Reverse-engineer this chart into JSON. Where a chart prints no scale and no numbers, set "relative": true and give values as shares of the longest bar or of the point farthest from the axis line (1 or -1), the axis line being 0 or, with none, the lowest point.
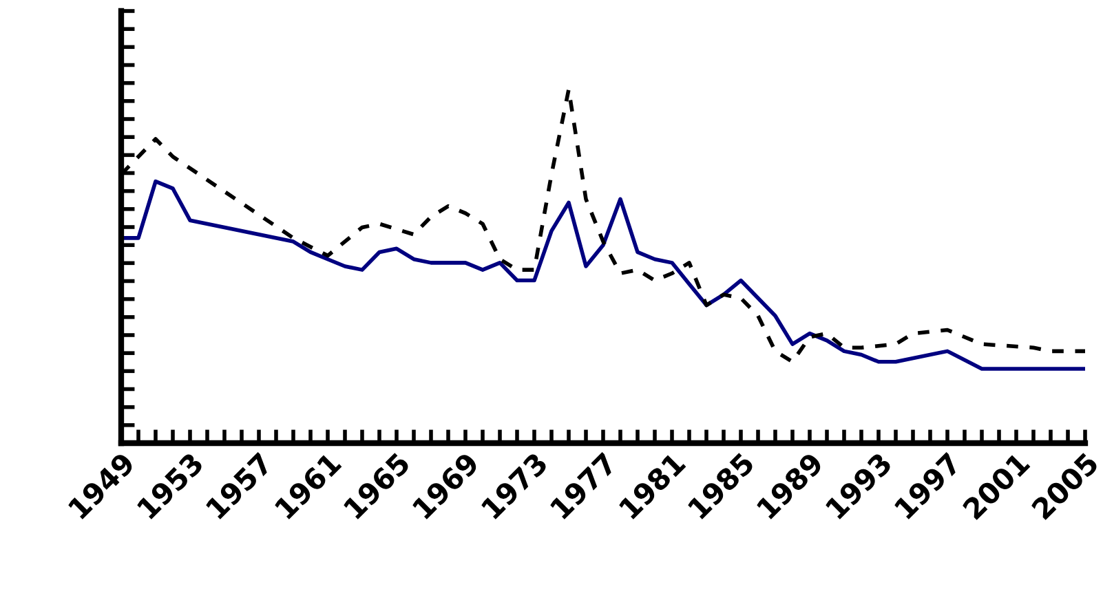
{
  "chart_data": {
    "type": "line",
    "relative": true,
    "tick_labels": "x",
    "grid": false,
    "legend": false,
    "marker": "none",
    "xlim": [
      1949,
      2005
    ],
    "xticks": [
      {
        "value": 1949,
        "label": "1949"
      },
      {
        "value": 1950,
        "label": null
      },
      {
        "value": 1951,
        "label": null
      },
      {
        "value": 1952,
        "label": null
      },
      {
        "value": 1953,
        "label": "1953"
      },
      {
        "value": 1954,
        "label": null
      },
      {
        "value": 1955,
        "label": null
      },
      {
        "value": 1956,
        "label": null
      },
      {
        "value": 1957,
        "label": "1957"
      },
      {
        "value": 1958,
        "label": null
      },
      {
        "value": 1959,
        "label": null
      },
      {
        "value": 1960,
        "label": null
      },
      {
        "value": 1961,
        "label": "1961"
      },
      {
        "value": 1962,
        "label": null
      },
      {
        "value": 1963,
        "label": null
      },
      {
        "value": 1964,
        "label": null
      },
      {
        "value": 1965,
        "label": "1965"
      },
      {
        "value": 1966,
        "label": null
      },
      {
        "value": 1967,
        "label": null
      },
      {
        "value": 1968,
        "label": null
      },
      {
        "value": 1969,
        "label": "1969"
      },
      {
        "value": 1970,
        "label": null
      },
      {
        "value": 1971,
        "label": null
      },
      {
        "value": 1972,
        "label": null
      },
      {
        "value": 1973,
        "label": "1973"
      },
      {
        "value": 1974,
        "label": null
      },
      {
        "value": 1975,
        "label": null
      },
      {
        "value": 1976,
        "label": null
      },
      {
        "value": 1977,
        "label": "1977"
      },
      {
        "value": 1978,
        "label": null
      },
      {
        "value": 1979,
        "label": null
      },
      {
        "value": 1980,
        "label": null
      },
      {
        "value": 1981,
        "label": "1981"
      },
      {
        "value": 1982,
        "label": null
      },
      {
        "value": 1983,
        "label": null
      },
      {
        "value": 1984,
        "label": null
      },
      {
        "value": 1985,
        "label": "1985"
      },
      {
        "value": 1986,
        "label": null
      },
      {
        "value": 1987,
        "label": null
      },
      {
        "value": 1988,
        "label": null
      },
      {
        "value": 1989,
        "label": "1989"
      },
      {
        "value": 1990,
        "label": null
      },
      {
        "value": 1991,
        "label": null
      },
      {
        "value": 1992,
        "label": null
      },
      {
        "value": 1993,
        "label": "1993"
      },
      {
        "value": 1994,
        "label": null
      },
      {
        "value": 1995,
        "label": null
      },
      {
        "value": 1996,
        "label": null
      },
      {
        "value": 1997,
        "label": "1997"
      },
      {
        "value": 1998,
        "label": null
      },
      {
        "value": 1999,
        "label": null
      },
      {
        "value": 2000,
        "label": null
      },
      {
        "value": 2001,
        "label": "2001"
      },
      {
        "value": 2002,
        "label": null
      },
      {
        "value": 2003,
        "label": null
      },
      {
        "value": 2004,
        "label": null
      },
      {
        "value": 2005,
        "label": "2005"
      }
    ],
    "series": [
      {
        "color": "#000080",
        "line_style": "solid",
        "x": [
          1949,
          1950,
          1951,
          1952,
          1953,
          1959,
          1960,
          1961,
          1962,
          1963,
          1964,
          1965,
          1966,
          1967,
          1969,
          1970,
          1971,
          1972,
          1973,
          1974,
          1975,
          1976,
          1977,
          1978,
          1979,
          1980,
          1981,
          1982,
          1983,
          1984,
          1985,
          1986,
          1987,
          1988,
          1989,
          1990,
          1991,
          1992,
          1993,
          1994,
          1997,
          1999,
          2002,
          2003,
          2005
        ],
        "values": [
          0.58,
          0.58,
          0.74,
          0.72,
          0.63,
          0.57,
          0.54,
          0.52,
          0.5,
          0.49,
          0.54,
          0.55,
          0.52,
          0.51,
          0.51,
          0.49,
          0.51,
          0.46,
          0.46,
          0.6,
          0.68,
          0.5,
          0.56,
          0.69,
          0.54,
          0.52,
          0.51,
          0.45,
          0.39,
          0.42,
          0.46,
          0.41,
          0.36,
          0.28,
          0.31,
          0.29,
          0.26,
          0.25,
          0.23,
          0.23,
          0.26,
          0.21,
          0.21,
          0.21,
          0.21
        ]
      },
      {
        "color": "#000000",
        "line_style": "dashed",
        "x": [
          1949,
          1951,
          1952,
          1959,
          1961,
          1963,
          1964,
          1966,
          1967,
          1968,
          1969,
          1970,
          1971,
          1972,
          1973,
          1974,
          1975,
          1976,
          1977,
          1978,
          1979,
          1980,
          1981,
          1982,
          1983,
          1984,
          1985,
          1986,
          1987,
          1988,
          1989,
          1990,
          1991,
          1992,
          1994,
          1995,
          1997,
          1999,
          2002,
          2003,
          2005
        ],
        "values": [
          0.76,
          0.86,
          0.81,
          0.58,
          0.53,
          0.61,
          0.62,
          0.59,
          0.64,
          0.67,
          0.65,
          0.62,
          0.52,
          0.49,
          0.49,
          0.76,
          1.0,
          0.69,
          0.57,
          0.48,
          0.49,
          0.46,
          0.48,
          0.51,
          0.39,
          0.42,
          0.41,
          0.36,
          0.26,
          0.23,
          0.3,
          0.31,
          0.27,
          0.27,
          0.28,
          0.31,
          0.32,
          0.28,
          0.27,
          0.26,
          0.26
        ]
      }
    ]
  }
}
